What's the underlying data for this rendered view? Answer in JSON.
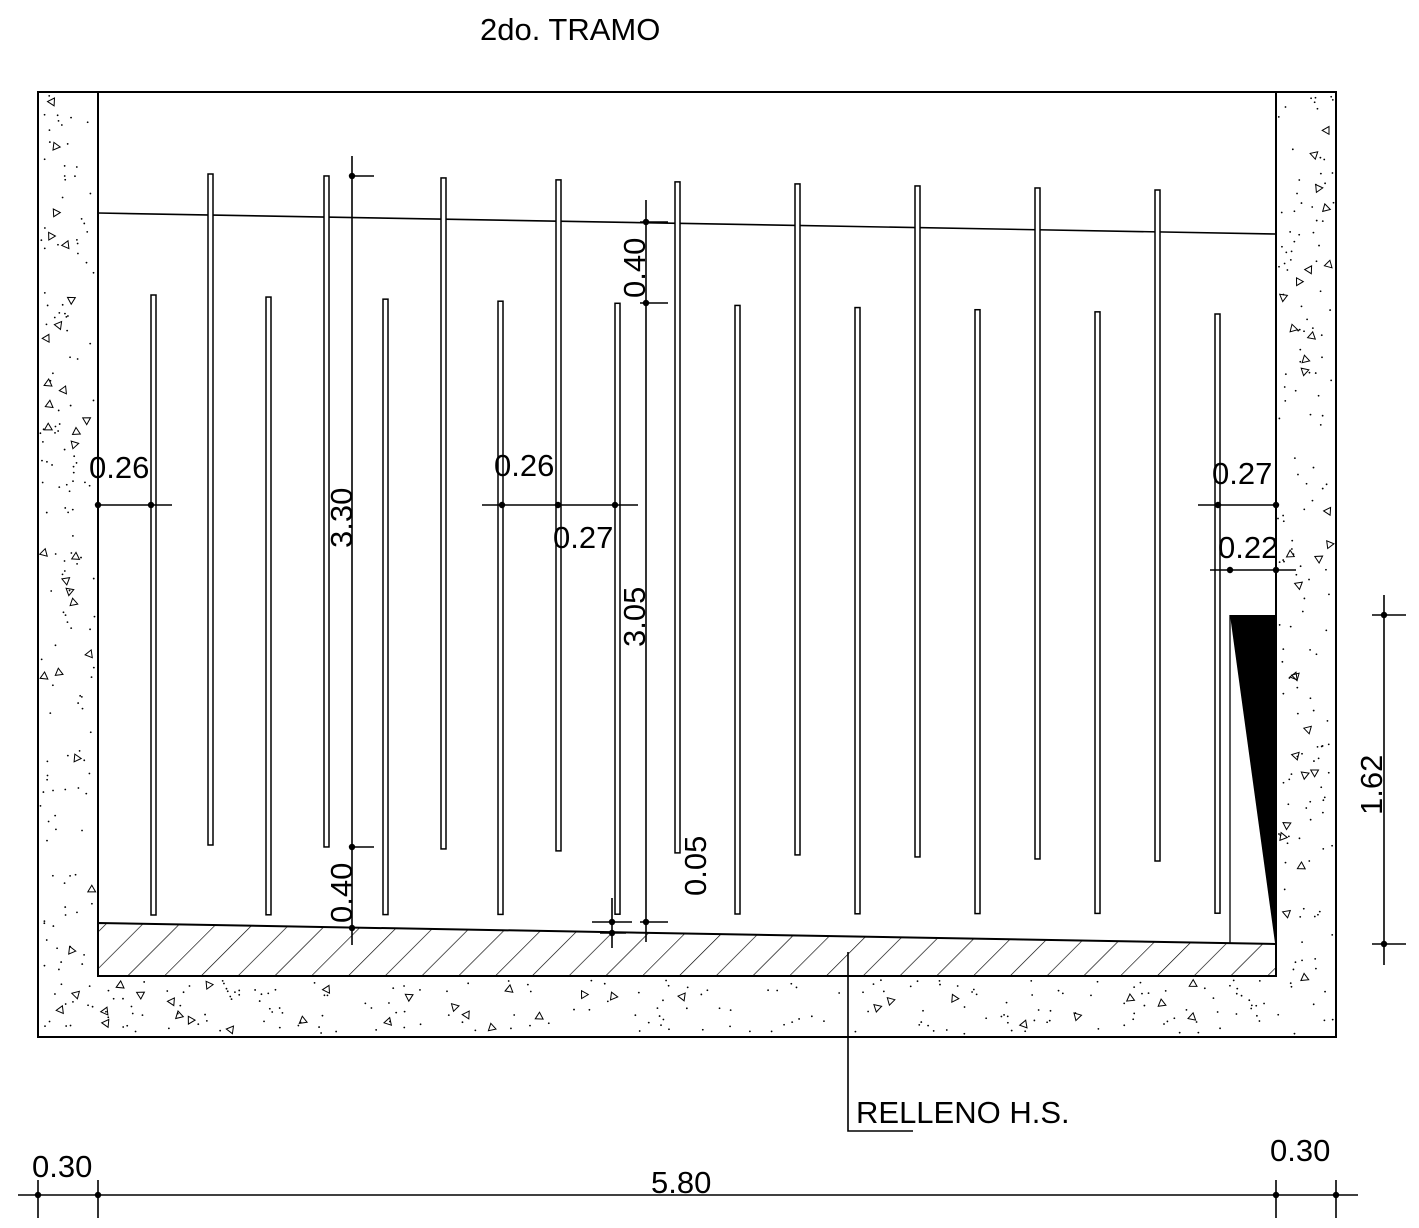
{
  "title": "2do. TRAMO",
  "fill_label": "RELLENO H.S.",
  "dimensions": {
    "wall_left": "0.30",
    "span": "5.80",
    "wall_right": "0.30",
    "edge_gap_left": "0.26",
    "mid_gap_a": "0.26",
    "mid_gap_b": "0.27",
    "edge_gap_right": "0.27",
    "right_end_gap": "0.22",
    "long_slat_height": "3.30",
    "short_slat_height": "3.05",
    "top_offset": "0.40",
    "bottom_offset": "0.40",
    "base_gap": "0.05",
    "wedge_height": "1.62"
  },
  "colors": {
    "line": "#000000",
    "background": "#ffffff"
  }
}
